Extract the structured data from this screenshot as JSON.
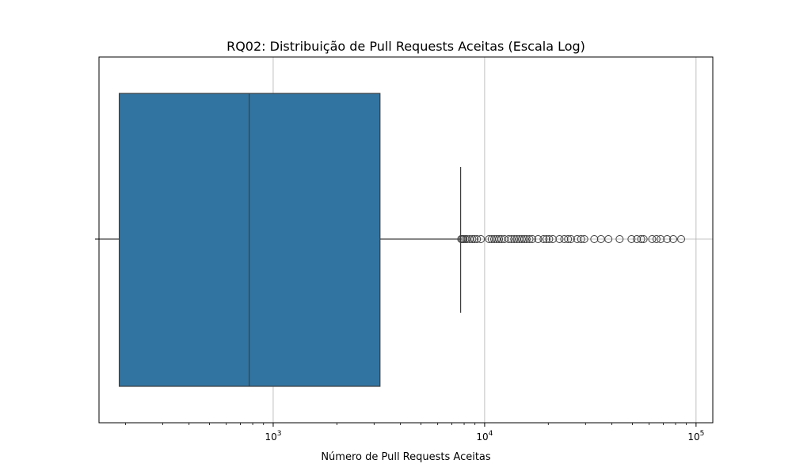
{
  "chart_data": {
    "type": "boxplot",
    "title": "RQ02: Distribuição de Pull Requests Aceitas (Escala Log)",
    "xlabel": "Número de Pull Requests Aceitas",
    "ylabel": "",
    "xscale": "log",
    "xlim": [
      150,
      120000
    ],
    "grid": true,
    "box_color": "#3274a1",
    "line_color": "#3d3d3d",
    "xticks": [
      {
        "value": 1000,
        "base": "10",
        "exp": "3"
      },
      {
        "value": 10000,
        "base": "10",
        "exp": "4"
      },
      {
        "value": 100000,
        "base": "10",
        "exp": "5"
      }
    ],
    "stats": {
      "whisker_low": 150,
      "q1": 187,
      "median": 770,
      "q3": 3200,
      "whisker_high": 7700
    },
    "outliers": [
      7750,
      7850,
      7950,
      8100,
      8250,
      8500,
      8750,
      8950,
      9200,
      9600,
      10500,
      10800,
      11100,
      11400,
      11700,
      12000,
      12400,
      13000,
      13400,
      13800,
      14200,
      14600,
      15000,
      15400,
      15800,
      16300,
      16800,
      17900,
      19000,
      19600,
      20200,
      21000,
      22600,
      23800,
      24800,
      25600,
      27400,
      28600,
      29600,
      33000,
      35500,
      38500,
      43500,
      49500,
      52500,
      55000,
      56500,
      62000,
      65000,
      68000,
      73000,
      78000,
      85000
    ]
  }
}
